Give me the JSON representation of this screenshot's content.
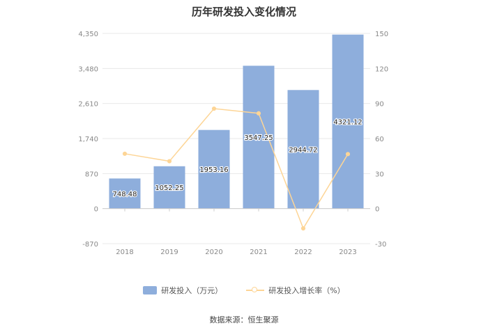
{
  "title": "历年研发投入变化情况",
  "source": "数据来源：恒生聚源",
  "colors": {
    "bar": "#8eaedc",
    "line": "#fdd596",
    "grid": "#e8e8e8",
    "axis_text": "#888888"
  },
  "chart_data": {
    "type": "bar",
    "title": "历年研发投入变化情况",
    "categories": [
      "2018",
      "2019",
      "2020",
      "2021",
      "2022",
      "2023"
    ],
    "series": [
      {
        "name": "研发投入（万元）",
        "type": "bar",
        "axis": "left",
        "values": [
          748.48,
          1052.25,
          1953.16,
          3547.25,
          2944.72,
          4321.12
        ],
        "labels": [
          "748.48",
          "1052.25",
          "1953.16",
          "3547.25",
          "2944.72",
          "4321.12"
        ]
      },
      {
        "name": "研发投入增长率（%）",
        "type": "line",
        "axis": "right",
        "values": [
          47.0,
          40.6,
          85.6,
          81.6,
          -16.9,
          46.7
        ]
      }
    ],
    "y_left": {
      "ticks": [
        "4,350",
        "3,480",
        "2,610",
        "1,740",
        "870",
        "0",
        "-870"
      ],
      "min": -870,
      "max": 4350
    },
    "y_right": {
      "ticks": [
        "150",
        "120",
        "90",
        "60",
        "30",
        "0",
        "-30"
      ],
      "min": -30,
      "max": 150
    },
    "grid": true,
    "legend_position": "bottom"
  }
}
